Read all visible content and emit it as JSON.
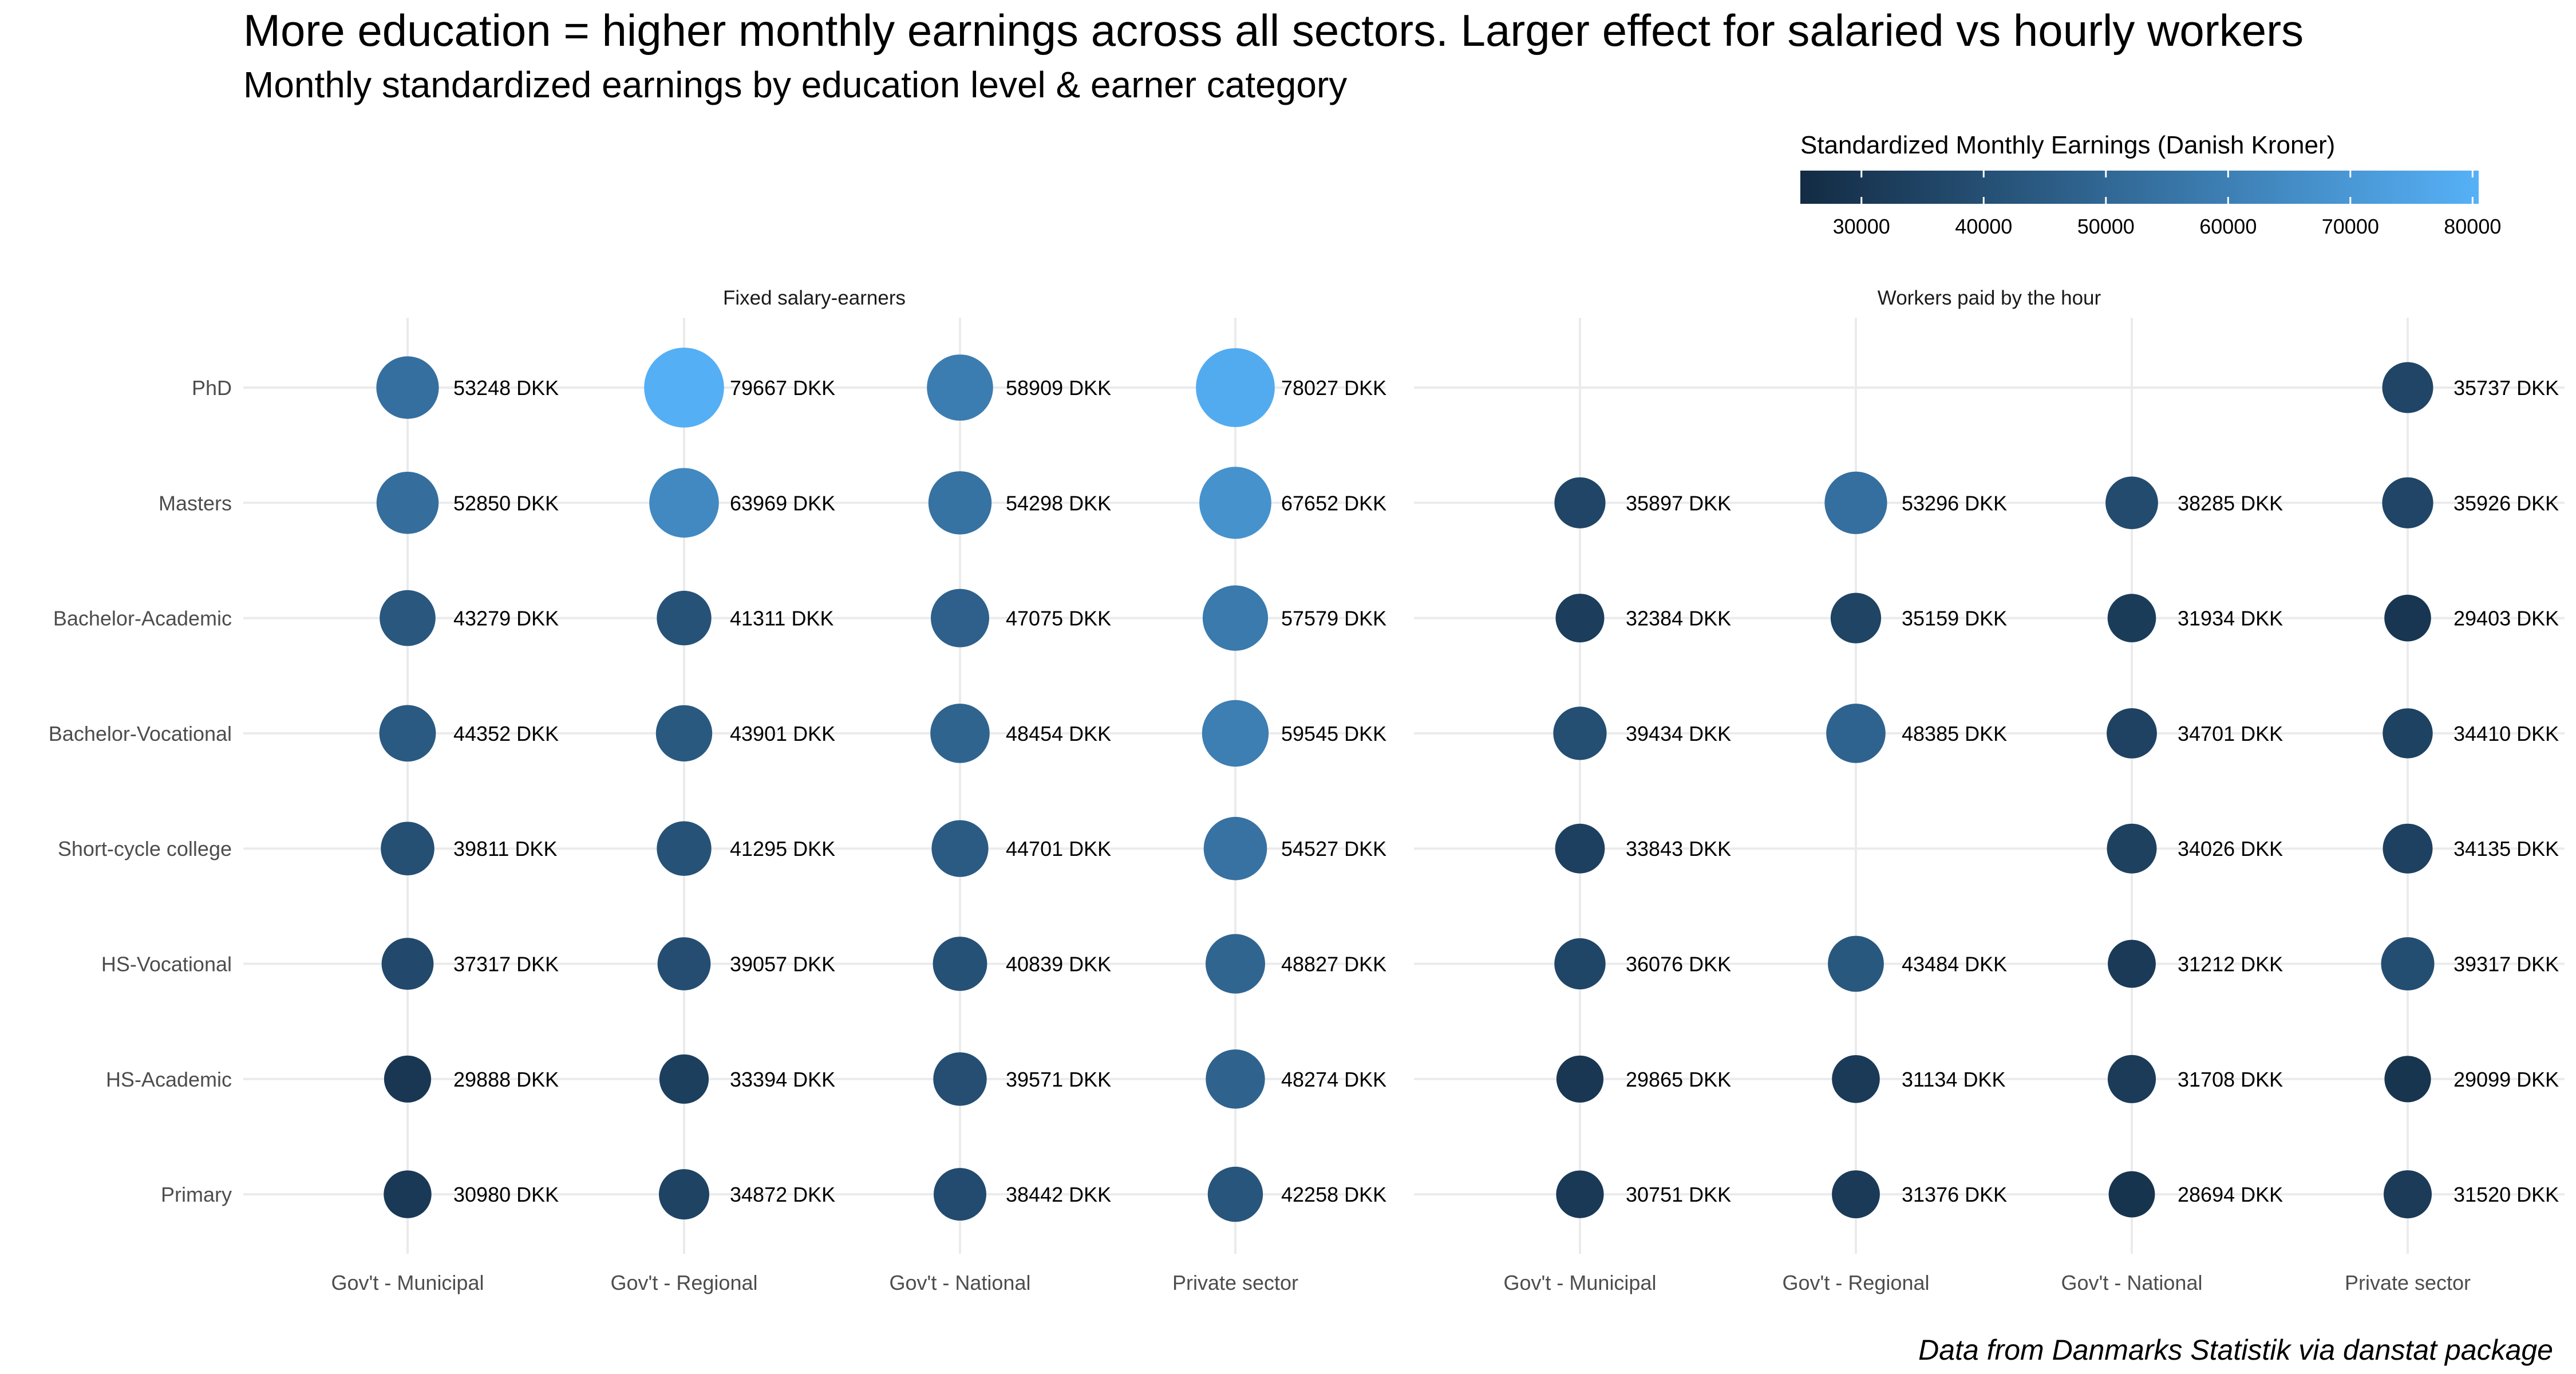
{
  "chart_data": {
    "type": "scatter",
    "title": "More education = higher monthly earnings across all sectors. Larger effect for salaried vs hourly workers",
    "subtitle": "Monthly standardized earnings by education level & earner category",
    "caption": "Data from Danmarks Statistik via danstat package",
    "legend": {
      "title": "Standardized Monthly Earnings (Danish Kroner)",
      "ticks": [
        "30000",
        "40000",
        "50000",
        "60000",
        "70000",
        "80000"
      ],
      "range": [
        25000,
        80500
      ],
      "color_low": "#132B43",
      "color_high": "#56B1F7",
      "position": "top-right"
    },
    "value_suffix": " DKK",
    "education_levels": [
      "PhD",
      "Masters",
      "Bachelor-Academic",
      "Bachelor-Vocational",
      "Short-cycle college",
      "HS-Vocational",
      "HS-Academic",
      "Primary"
    ],
    "sectors": [
      "Gov't - Municipal",
      "Gov't - Regional",
      "Gov't - National",
      "Private sector"
    ],
    "facets": [
      {
        "name": "Fixed salary-earners",
        "values": [
          [
            53248,
            79667,
            58909,
            78027
          ],
          [
            52850,
            63969,
            54298,
            67652
          ],
          [
            43279,
            41311,
            47075,
            57579
          ],
          [
            44352,
            43901,
            48454,
            59545
          ],
          [
            39811,
            41295,
            44701,
            54527
          ],
          [
            37317,
            39057,
            40839,
            48827
          ],
          [
            29888,
            33394,
            39571,
            48274
          ],
          [
            30980,
            34872,
            38442,
            42258
          ]
        ]
      },
      {
        "name": "Workers paid by the hour",
        "values": [
          [
            null,
            null,
            null,
            35737
          ],
          [
            35897,
            53296,
            38285,
            35926
          ],
          [
            32384,
            35159,
            31934,
            29403
          ],
          [
            39434,
            48385,
            34701,
            34410
          ],
          [
            33843,
            null,
            34026,
            34135
          ],
          [
            36076,
            43484,
            31212,
            39317
          ],
          [
            29865,
            31134,
            31708,
            29099
          ],
          [
            30751,
            31376,
            28694,
            31520
          ]
        ]
      }
    ],
    "grid": true
  }
}
